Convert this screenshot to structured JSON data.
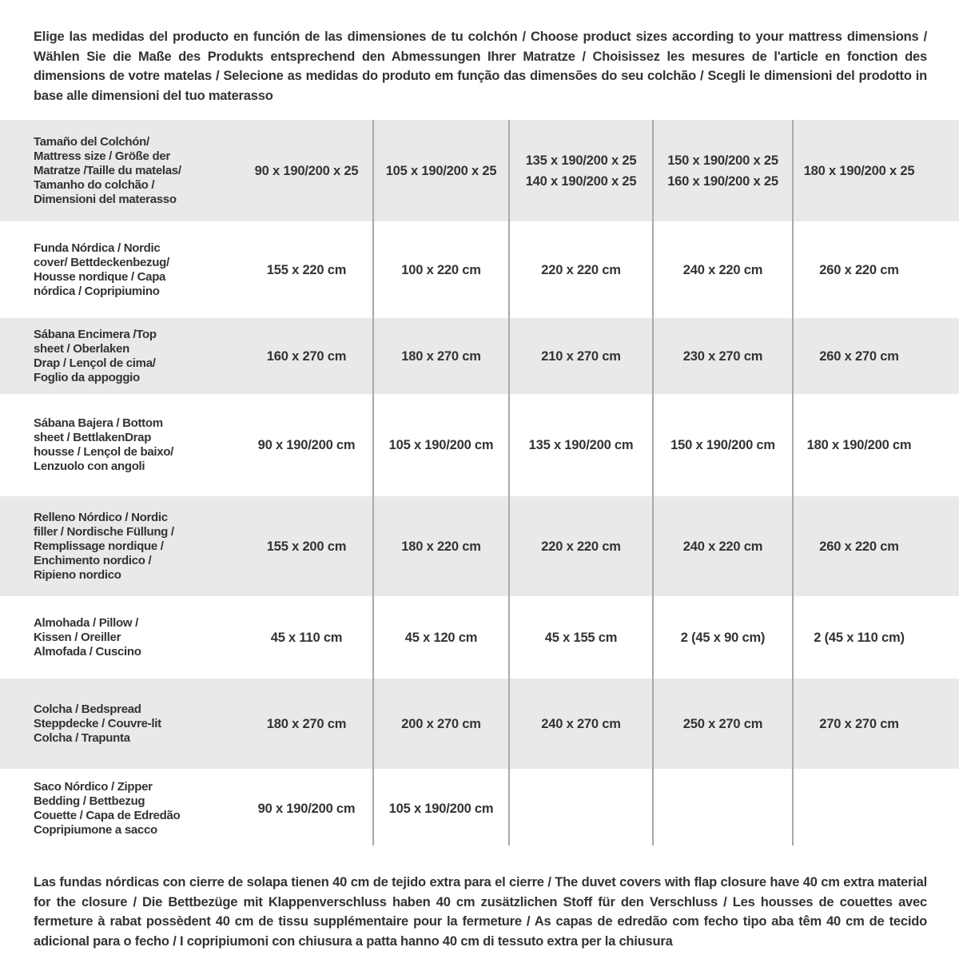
{
  "colors": {
    "text": "#333333",
    "row_gray": "#e9e9e9",
    "row_white": "#ffffff",
    "divider": "#a9a9a9",
    "background": "#ffffff"
  },
  "intro": "Elige las medidas del producto en función de las dimensiones de tu colchón / Choose product sizes according to your mattress dimensions / Wählen Sie die Maße des Produkts entsprechend den Abmessungen Ihrer Matratze / Choisissez les mesures de l'article en fonction des dimensions de votre matelas / Selecione as medidas do produto em função das dimensões do seu colchão / Scegli le dimensioni del prodotto in base alle dimensioni del tuo materasso",
  "footnote": "Las fundas nórdicas con cierre de solapa tienen 40 cm de tejido extra para el cierre / The duvet covers with flap closure have 40 cm extra material for the closure / Die Bettbezüge mit Klappenverschluss haben 40 cm zusätzlichen Stoff für den Verschluss / Les housses de couettes avec fermeture à rabat possèdent 40 cm de tissu supplémentaire pour la fermeture / As capas de edredão com fecho tipo aba têm 40 cm de tecido adicional para o fecho / I copripiumoni con chiusura a patta hanno 40 cm di tessuto extra per la chiusura",
  "table": {
    "rows": [
      {
        "product": "mattress-size",
        "label": "Tamaño del Colchón/\nMattress size / Größe der\nMatratze /Taille du matelas/\nTamanho do colchão /\nDimensioni del materasso",
        "values": [
          "90 x 190/200 x 25",
          "105 x 190/200 x 25",
          "135 x 190/200 x 25\n140 x 190/200 x 25",
          "150 x 190/200 x 25\n160 x 190/200 x 25",
          "180 x 190/200 x 25"
        ]
      },
      {
        "product": "nordic-cover",
        "label": "Funda Nórdica /  Nordic\ncover/ Bettdeckenbezug/\nHousse nordique  / Capa\nnórdica / Copripiumino",
        "values": [
          "155 x 220 cm",
          "100 x 220 cm",
          "220 x 220 cm",
          "240 x 220 cm",
          "260 x 220 cm"
        ]
      },
      {
        "product": "top-sheet",
        "label": "Sábana Encimera /Top\nsheet / Oberlaken\nDrap / Lençol de cima/\nFoglio da appoggio",
        "values": [
          "160 x 270 cm",
          "180 x 270 cm",
          "210 x 270 cm",
          "230 x 270 cm",
          "260 x 270 cm"
        ]
      },
      {
        "product": "bottom-sheet",
        "label": "Sábana Bajera / Bottom\nsheet / BettlakenDrap\nhousse / Lençol de baixo/\nLenzuolo con angoli",
        "values": [
          "90 x 190/200 cm",
          "105 x 190/200 cm",
          "135 x 190/200 cm",
          "150 x 190/200 cm",
          "180 x 190/200 cm"
        ]
      },
      {
        "product": "nordic-filler",
        "label": "Relleno Nórdico / Nordic\nfiller / Nordische Füllung /\nRemplissage nordique /\nEnchimento nordico /\nRipieno nordico",
        "values": [
          "155 x 200 cm",
          "180 x 220 cm",
          "220 x 220 cm",
          "240 x 220 cm",
          "260 x 220 cm"
        ]
      },
      {
        "product": "pillow",
        "label": "Almohada  / Pillow /\nKissen / Oreiller\nAlmofada / Cuscino",
        "values": [
          "45 x 110 cm",
          "45 x 120 cm",
          "45 x 155 cm",
          "2 (45 x 90 cm)",
          "2 (45 x 110 cm)"
        ]
      },
      {
        "product": "bedspread",
        "label": "Colcha / Bedspread\nSteppdecke / Couvre-lit\nColcha / Trapunta",
        "values": [
          "180 x 270 cm",
          "200 x 270 cm",
          "240 x 270 cm",
          "250 x 270 cm",
          "270 x 270 cm"
        ]
      },
      {
        "product": "zipper-bedding",
        "label": "Saco Nórdico / Zipper\nBedding / Bettbezug\nCouette  / Capa de Edredão\nCopripiumone a sacco",
        "values": [
          "90 x 190/200 cm",
          "105 x 190/200 cm",
          "",
          "",
          ""
        ]
      }
    ]
  }
}
